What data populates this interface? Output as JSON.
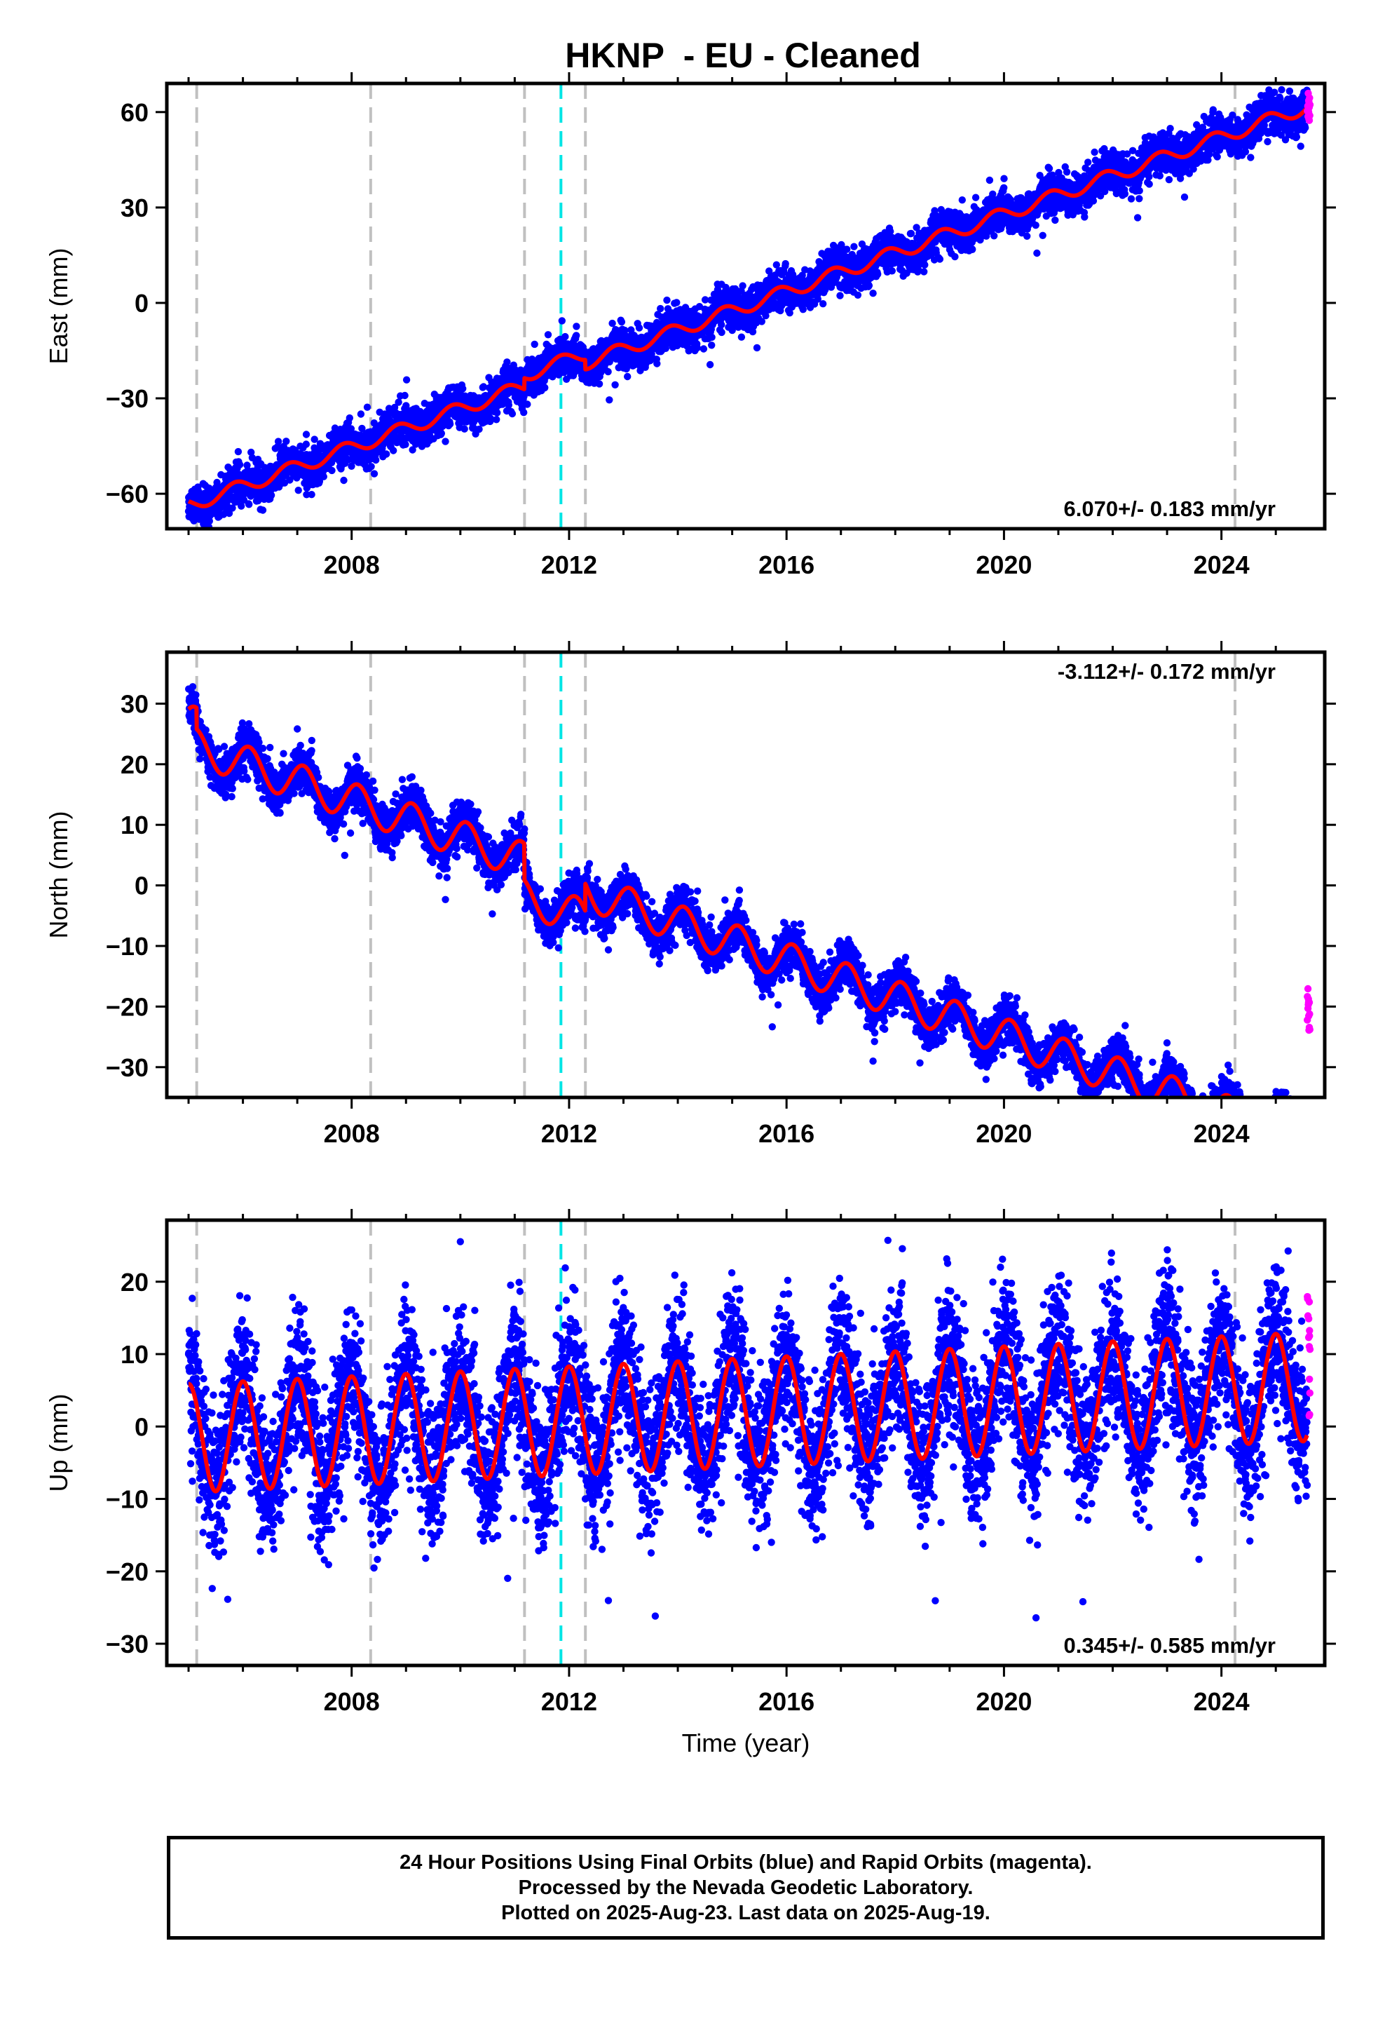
{
  "title": "HKNP  - EU - Cleaned",
  "xlabel": "Time (year)",
  "footer": {
    "line1": "24 Hour Positions Using Final Orbits (blue) and Rapid Orbits (magenta).",
    "line2": "Processed by the Nevada Geodetic Laboratory.",
    "line3": "Plotted on 2025-Aug-23. Last data on 2025-Aug-19."
  },
  "colors": {
    "final_orbits": "#0000ff",
    "rapid_orbits": "#ff00ff",
    "model": "#ff0000",
    "equipment_change": "#c0c0c0",
    "earthquake": "#00e5e5"
  },
  "chart_data": [
    {
      "type": "scatter",
      "ylabel": "East (mm)",
      "xlim": [
        2004.6,
        2025.9
      ],
      "ylim": [
        -71,
        69
      ],
      "xticks": [
        2008,
        2012,
        2016,
        2020,
        2024
      ],
      "yticks": [
        -60,
        -30,
        0,
        30,
        60
      ],
      "rate_label": "6.070+/- 0.183 mm/yr",
      "rate_position": "bottom-right",
      "series": [
        {
          "type": "scatter",
          "color": "#0000ff",
          "x_range": [
            2005.0,
            2025.58
          ],
          "noise_mm": 3.0
        },
        {
          "type": "scatter",
          "color": "#ff00ff",
          "x_range": [
            2025.58,
            2025.63
          ],
          "y": [
            56,
            66
          ]
        },
        {
          "type": "line",
          "color": "#ff0000",
          "model": {
            "t0": 2012.0,
            "intercept": -21.2,
            "rate": 6.07,
            "sin": -1.7,
            "cos": 1.3,
            "steps": [
              {
                "t": 2011.18,
                "d": 3.5
              },
              {
                "t": 2012.3,
                "d": -3.0
              }
            ]
          }
        }
      ],
      "vlines_equipment": [
        2005.15,
        2008.35,
        2011.18,
        2012.3,
        2024.25
      ],
      "vlines_earthquake": [
        2011.85
      ]
    },
    {
      "type": "scatter",
      "ylabel": "North (mm)",
      "xlim": [
        2004.6,
        2025.9
      ],
      "ylim": [
        -35,
        38.5
      ],
      "xticks": [
        2008,
        2012,
        2016,
        2020,
        2024
      ],
      "yticks": [
        -30,
        -20,
        -10,
        0,
        10,
        20,
        30
      ],
      "rate_label": "-3.112+/- 0.172 mm/yr",
      "rate_position": "top-right",
      "series": [
        {
          "type": "scatter",
          "color": "#0000ff",
          "x_range": [
            2005.0,
            2025.58
          ],
          "noise_mm": 1.8
        },
        {
          "type": "scatter",
          "color": "#ff00ff",
          "x_range": [
            2025.58,
            2025.63
          ],
          "y": [
            -24,
            -17
          ]
        },
        {
          "type": "line",
          "color": "#ff0000",
          "model": {
            "t0": 2012.0,
            "intercept": 5.0,
            "rate": -3.112,
            "sin": 2.0,
            "cos": 2.3,
            "steps": [
              {
                "t": 2005.15,
                "d": -3.5
              },
              {
                "t": 2011.18,
                "d": -6.0
              },
              {
                "t": 2012.3,
                "d": 4.5
              }
            ]
          }
        }
      ],
      "vlines_equipment": [
        2005.15,
        2008.35,
        2011.18,
        2012.3,
        2024.25
      ],
      "vlines_earthquake": [
        2011.85
      ]
    },
    {
      "type": "scatter",
      "ylabel": "Up (mm)",
      "xlim": [
        2004.6,
        2025.9
      ],
      "ylim": [
        -33,
        28.5
      ],
      "xticks": [
        2008,
        2012,
        2016,
        2020,
        2024
      ],
      "yticks": [
        -30,
        -20,
        -10,
        0,
        10,
        20
      ],
      "rate_label": "0.345+/- 0.585 mm/yr",
      "rate_position": "bottom-right",
      "series": [
        {
          "type": "scatter",
          "color": "#0000ff",
          "x_range": [
            2005.0,
            2025.58
          ],
          "noise_mm": 5.0
        },
        {
          "type": "scatter",
          "color": "#ff00ff",
          "x_range": [
            2025.58,
            2025.63
          ],
          "y": [
            0,
            22
          ]
        },
        {
          "type": "line",
          "color": "#ff0000",
          "model": {
            "t0": 2012.0,
            "intercept": 0.8,
            "rate": 0.345,
            "sin": 0.0,
            "cos": 7.5,
            "steps": []
          }
        }
      ],
      "vlines_equipment": [
        2005.15,
        2008.35,
        2011.18,
        2012.3,
        2024.25
      ],
      "vlines_earthquake": [
        2011.85
      ]
    }
  ]
}
